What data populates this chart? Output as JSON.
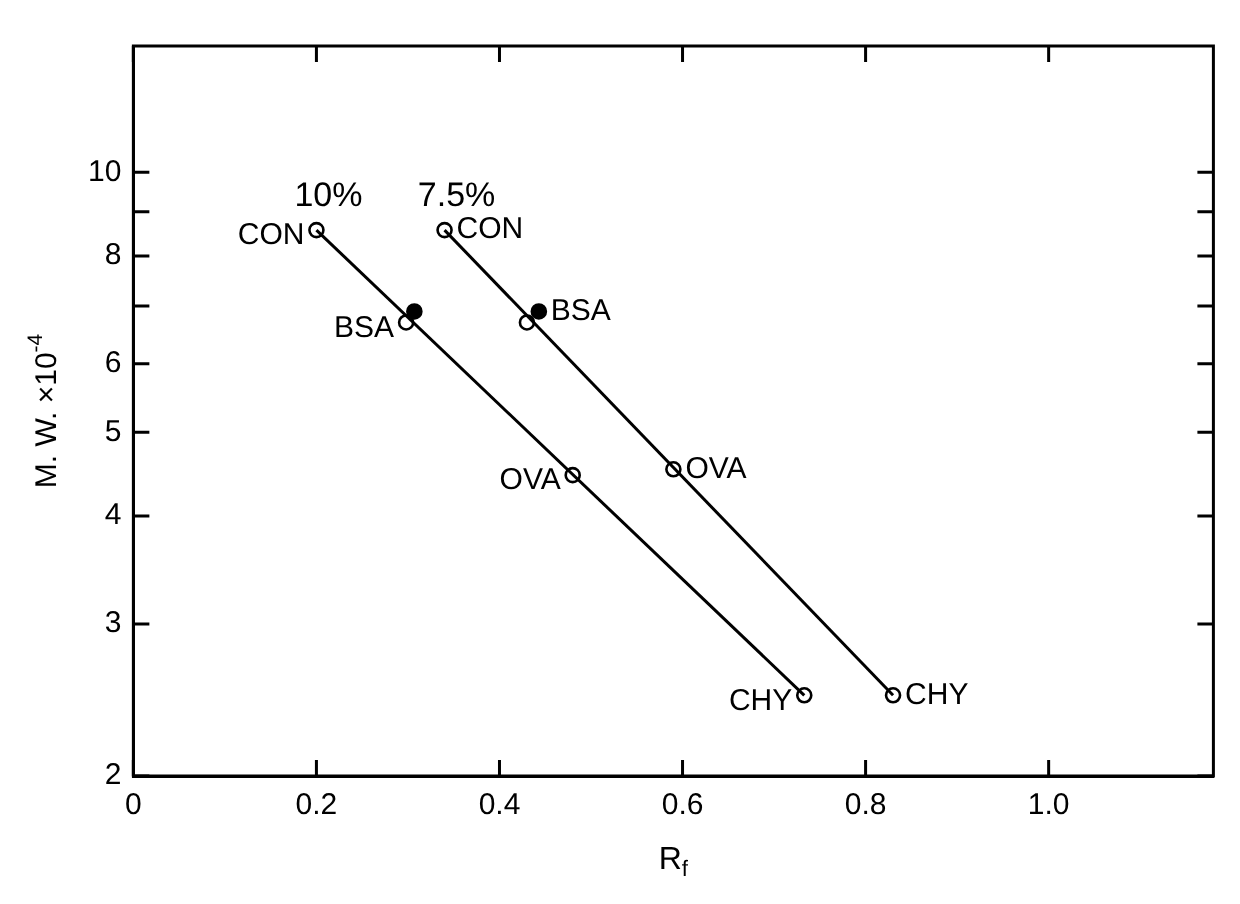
{
  "chart_data": {
    "type": "scatter",
    "xlabel": "R$_{f}$",
    "ylabel": "M. W. ×10$^{-4}$",
    "log": true,
    "xlim": [
      0,
      1.18
    ],
    "xticks": [
      0,
      0.2,
      0.4,
      0.6,
      0.8,
      {
        "value": 1,
        "label": "1.0"
      }
    ],
    "ylim": [
      2,
      14
    ],
    "yticks": [
      2,
      3,
      4,
      5,
      6,
      {
        "value": 7,
        "label": null
      },
      8,
      {
        "value": 9,
        "label": null
      },
      10
    ],
    "legend": false,
    "series": [
      {
        "name": "10%",
        "type": "line",
        "marker": "none",
        "color": "#000000",
        "x": [
          0.2,
          0.733
        ],
        "values": [
          8.57,
          2.48
        ]
      },
      {
        "name": "7.5%",
        "type": "line",
        "marker": "none",
        "color": "#000000",
        "x": [
          0.34,
          0.83
        ],
        "values": [
          8.57,
          2.48
        ]
      },
      {
        "marker": "circle",
        "color": "#ffffff",
        "x": [
          0.2,
          0.298,
          0.48,
          0.733,
          0.34,
          0.43,
          0.59,
          0.83
        ],
        "values": [
          8.57,
          6.7,
          4.46,
          2.48,
          8.57,
          6.7,
          4.53,
          2.48
        ]
      },
      {
        "marker": "circle",
        "color": "#000000",
        "x": [
          0.307,
          0.443
        ],
        "values": [
          6.9,
          6.9
        ]
      }
    ],
    "annotations": [
      {
        "text": "CON",
        "x": 0.2,
        "y": 8.57
      },
      {
        "text": "CON",
        "x": 0.34,
        "y": 8.57
      },
      {
        "text": "BSA",
        "x": 0.298,
        "y": 6.7
      },
      {
        "text": "BSA",
        "x": 0.443,
        "y": 6.9
      },
      {
        "text": "OVA",
        "x": 0.48,
        "y": 4.46
      },
      {
        "text": "OVA",
        "x": 0.59,
        "y": 4.53
      },
      {
        "text": "CHY",
        "x": 0.733,
        "y": 2.48
      },
      {
        "text": "CHY",
        "x": 0.83,
        "y": 2.48
      }
    ]
  }
}
